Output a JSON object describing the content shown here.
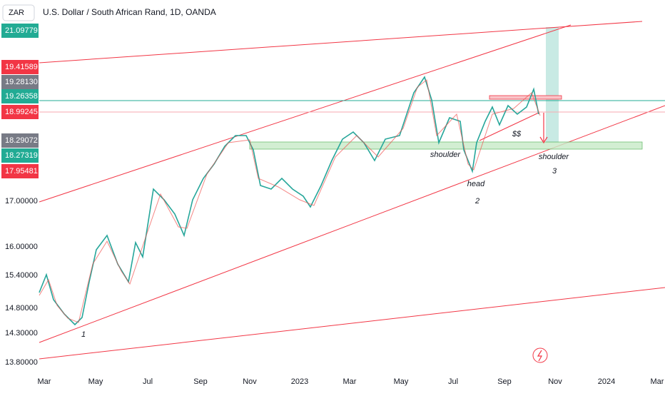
{
  "header": {
    "symbol": "ZAR",
    "title": "U.S. Dollar / South African Rand, 1D, OANDA"
  },
  "price_labels": [
    {
      "text": "21.09779",
      "color": "#22ab94"
    },
    {
      "text": "19.41589",
      "color": "#f23645"
    },
    {
      "text": "19.28130",
      "color": "#787b86"
    },
    {
      "text": "19.26358",
      "color": "#22ab94"
    },
    {
      "text": "18.99245",
      "color": "#f23645"
    },
    {
      "text": "18.29072",
      "color": "#787b86"
    },
    {
      "text": "18.27319",
      "color": "#22ab94"
    },
    {
      "text": "17.95481",
      "color": "#f23645"
    }
  ],
  "price_axis": [
    "17.00000",
    "16.00000",
    "15.40000",
    "14.80000",
    "14.30000",
    "13.80000"
  ],
  "time_axis": [
    "Mar",
    "May",
    "Jul",
    "Sep",
    "Nov",
    "2023",
    "Mar",
    "May",
    "Jul",
    "Sep",
    "Nov",
    "2024",
    "Mar"
  ],
  "annotations": [
    "1",
    "shoulder",
    "head",
    "2",
    "$$",
    "shoulder",
    "3"
  ]
}
